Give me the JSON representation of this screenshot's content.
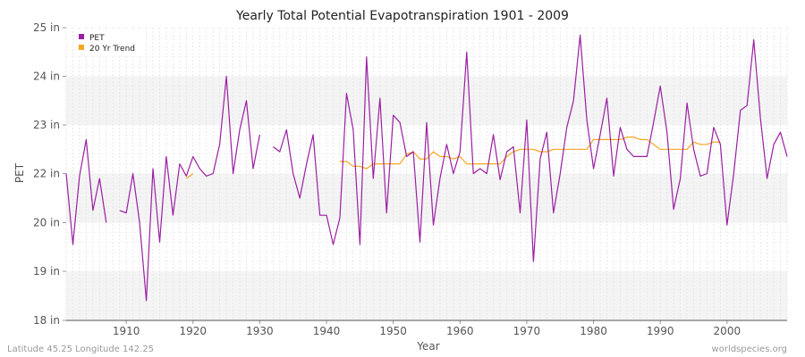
{
  "chart_data": {
    "type": "line",
    "title": "Yearly Total Potential Evapotranspiration 1901 - 2009",
    "xlabel": "Year",
    "ylabel": "PET",
    "xlim": [
      1901,
      2009
    ],
    "ylim": [
      18,
      25
    ],
    "y_scale": "piecewise",
    "y_ticks": [
      {
        "value": 18,
        "label": "18 in"
      },
      {
        "value": 19,
        "label": "19 in"
      },
      {
        "value": 20,
        "label": "20 in"
      },
      {
        "value": 22,
        "label": "22 in"
      },
      {
        "value": 23,
        "label": "23 in"
      },
      {
        "value": 24,
        "label": "24 in"
      },
      {
        "value": 25,
        "label": "25 in"
      }
    ],
    "x_ticks": [
      1910,
      1920,
      1930,
      1940,
      1950,
      1960,
      1970,
      1980,
      1990,
      2000
    ],
    "grid": true,
    "legend": "top-left",
    "series": [
      {
        "name": "PET",
        "color": "#9b1fa3",
        "points": [
          [
            1901,
            22.0
          ],
          [
            1902,
            19.55
          ],
          [
            1903,
            21.9
          ],
          [
            1904,
            22.7
          ],
          [
            1905,
            20.5
          ],
          [
            1906,
            21.8
          ],
          [
            1907,
            20.0
          ],
          [
            1909,
            20.5
          ],
          [
            1910,
            20.4
          ],
          [
            1911,
            22.0
          ],
          [
            1912,
            20.0
          ],
          [
            1913,
            18.4
          ],
          [
            1914,
            22.1
          ],
          [
            1915,
            19.6
          ],
          [
            1916,
            22.35
          ],
          [
            1917,
            20.3
          ],
          [
            1918,
            22.2
          ],
          [
            1919,
            21.9
          ],
          [
            1920,
            22.35
          ],
          [
            1921,
            22.1
          ],
          [
            1922,
            21.9
          ],
          [
            1923,
            22.0
          ],
          [
            1924,
            22.6
          ],
          [
            1925,
            24.0
          ],
          [
            1926,
            22.0
          ],
          [
            1927,
            22.9
          ],
          [
            1928,
            23.5
          ],
          [
            1929,
            22.1
          ],
          [
            1930,
            22.8
          ],
          [
            1932,
            22.55
          ],
          [
            1933,
            22.45
          ],
          [
            1934,
            22.9
          ],
          [
            1935,
            22.0
          ],
          [
            1936,
            21.0
          ],
          [
            1937,
            22.2
          ],
          [
            1938,
            22.8
          ],
          [
            1939,
            20.3
          ],
          [
            1940,
            20.3
          ],
          [
            1941,
            19.55
          ],
          [
            1942,
            20.2
          ],
          [
            1943,
            23.65
          ],
          [
            1944,
            22.9
          ],
          [
            1945,
            19.55
          ],
          [
            1946,
            24.4
          ],
          [
            1947,
            21.8
          ],
          [
            1948,
            23.55
          ],
          [
            1949,
            20.4
          ],
          [
            1950,
            23.2
          ],
          [
            1951,
            23.05
          ],
          [
            1952,
            22.35
          ],
          [
            1953,
            22.45
          ],
          [
            1954,
            19.6
          ],
          [
            1955,
            23.05
          ],
          [
            1956,
            19.95
          ],
          [
            1957,
            21.8
          ],
          [
            1958,
            22.6
          ],
          [
            1959,
            22.0
          ],
          [
            1960,
            22.45
          ],
          [
            1961,
            24.5
          ],
          [
            1962,
            22.0
          ],
          [
            1963,
            22.1
          ],
          [
            1964,
            22.0
          ],
          [
            1965,
            22.8
          ],
          [
            1966,
            21.75
          ],
          [
            1967,
            22.45
          ],
          [
            1968,
            22.55
          ],
          [
            1969,
            20.4
          ],
          [
            1970,
            23.1
          ],
          [
            1971,
            19.2
          ],
          [
            1972,
            22.3
          ],
          [
            1973,
            22.85
          ],
          [
            1974,
            20.4
          ],
          [
            1975,
            22.0
          ],
          [
            1976,
            22.95
          ],
          [
            1977,
            23.5
          ],
          [
            1978,
            24.85
          ],
          [
            1979,
            23.1
          ],
          [
            1980,
            22.1
          ],
          [
            1981,
            22.8
          ],
          [
            1982,
            23.55
          ],
          [
            1983,
            21.9
          ],
          [
            1984,
            22.95
          ],
          [
            1985,
            22.5
          ],
          [
            1986,
            22.35
          ],
          [
            1987,
            22.35
          ],
          [
            1988,
            22.35
          ],
          [
            1989,
            23.05
          ],
          [
            1990,
            23.8
          ],
          [
            1991,
            22.85
          ],
          [
            1992,
            20.55
          ],
          [
            1993,
            21.8
          ],
          [
            1994,
            23.45
          ],
          [
            1995,
            22.5
          ],
          [
            1996,
            21.9
          ],
          [
            1997,
            22.0
          ],
          [
            1998,
            22.95
          ],
          [
            1999,
            22.6
          ],
          [
            2000,
            19.95
          ],
          [
            2001,
            22.0
          ],
          [
            2002,
            23.3
          ],
          [
            2003,
            23.4
          ],
          [
            2004,
            24.75
          ],
          [
            2005,
            23.15
          ],
          [
            2006,
            21.8
          ],
          [
            2007,
            22.6
          ],
          [
            2008,
            22.85
          ],
          [
            2009,
            22.35
          ]
        ]
      },
      {
        "name": "20 Yr Trend",
        "color": "#f5a623",
        "points": [
          [
            1919,
            21.8
          ],
          [
            1920,
            22.0
          ]
        ],
        "points_late": [
          [
            1942,
            22.25
          ],
          [
            1943,
            22.25
          ],
          [
            1944,
            22.15
          ],
          [
            1945,
            22.15
          ],
          [
            1946,
            22.1
          ],
          [
            1947,
            22.2
          ],
          [
            1948,
            22.2
          ],
          [
            1949,
            22.2
          ],
          [
            1950,
            22.2
          ],
          [
            1951,
            22.2
          ],
          [
            1952,
            22.4
          ],
          [
            1953,
            22.45
          ],
          [
            1954,
            22.3
          ],
          [
            1955,
            22.3
          ],
          [
            1956,
            22.45
          ],
          [
            1957,
            22.35
          ],
          [
            1958,
            22.35
          ],
          [
            1959,
            22.3
          ],
          [
            1960,
            22.35
          ],
          [
            1961,
            22.2
          ],
          [
            1962,
            22.2
          ],
          [
            1963,
            22.2
          ],
          [
            1964,
            22.2
          ],
          [
            1965,
            22.2
          ],
          [
            1966,
            22.2
          ],
          [
            1967,
            22.35
          ],
          [
            1968,
            22.45
          ],
          [
            1969,
            22.5
          ],
          [
            1970,
            22.5
          ],
          [
            1971,
            22.5
          ],
          [
            1972,
            22.45
          ],
          [
            1973,
            22.45
          ],
          [
            1974,
            22.5
          ],
          [
            1975,
            22.5
          ],
          [
            1976,
            22.5
          ],
          [
            1977,
            22.5
          ],
          [
            1978,
            22.5
          ],
          [
            1979,
            22.5
          ],
          [
            1980,
            22.7
          ],
          [
            1981,
            22.7
          ],
          [
            1982,
            22.7
          ],
          [
            1983,
            22.7
          ],
          [
            1984,
            22.7
          ],
          [
            1985,
            22.75
          ],
          [
            1986,
            22.75
          ],
          [
            1987,
            22.7
          ],
          [
            1988,
            22.7
          ],
          [
            1989,
            22.6
          ],
          [
            1990,
            22.5
          ],
          [
            1991,
            22.5
          ],
          [
            1992,
            22.5
          ],
          [
            1993,
            22.5
          ],
          [
            1994,
            22.5
          ],
          [
            1995,
            22.65
          ],
          [
            1996,
            22.6
          ],
          [
            1997,
            22.6
          ],
          [
            1998,
            22.65
          ],
          [
            1999,
            22.65
          ]
        ]
      }
    ]
  },
  "footer": {
    "left": "Latitude 45.25 Longitude 142.25",
    "right": "worldspecies.org"
  }
}
